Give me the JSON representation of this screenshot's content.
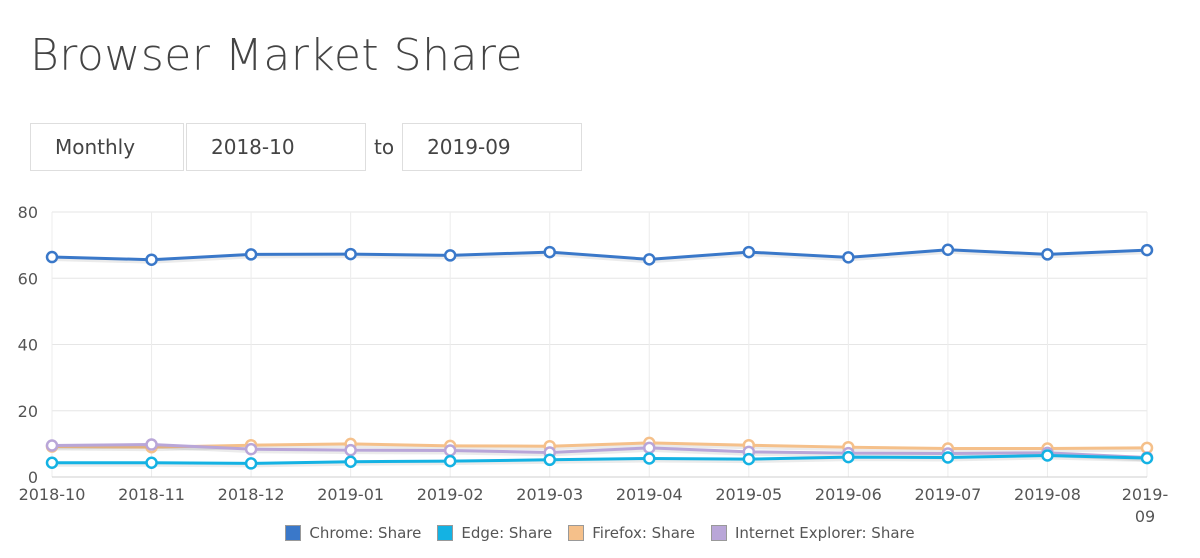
{
  "page": {
    "title": "Browser Market Share"
  },
  "controls": {
    "period": "Monthly",
    "from": "2018-10",
    "to_label": "to",
    "to": "2019-09"
  },
  "chart_data": {
    "type": "line",
    "x": [
      "2018-10",
      "2018-11",
      "2018-12",
      "2019-01",
      "2019-02",
      "2019-03",
      "2019-04",
      "2019-05",
      "2019-06",
      "2019-07",
      "2019-08",
      "2019-09"
    ],
    "x_tick_labels": [
      "2018-10",
      "2018-11",
      "2018-12",
      "2019-01",
      "2019-02",
      "2019-03",
      "2019-04",
      "2019-05",
      "2019-06",
      "2019-07",
      "2019-08",
      "2019-09"
    ],
    "ylim": [
      0,
      80
    ],
    "yticks": [
      0,
      20,
      40,
      60,
      80
    ],
    "grid": true,
    "legend_position": "bottom",
    "series": [
      {
        "name": "Chrome: Share",
        "color": "#3a78c9",
        "values": [
          66.4,
          65.6,
          67.2,
          67.3,
          66.9,
          67.9,
          65.7,
          67.9,
          66.3,
          68.6,
          67.2,
          68.5
        ]
      },
      {
        "name": "Edge: Share",
        "color": "#14b2e3",
        "values": [
          4.3,
          4.3,
          4.1,
          4.6,
          4.8,
          5.2,
          5.6,
          5.4,
          6.0,
          5.9,
          6.5,
          5.7
        ]
      },
      {
        "name": "Firefox: Share",
        "color": "#f5c08a",
        "values": [
          9.2,
          9.0,
          9.6,
          10.0,
          9.4,
          9.3,
          10.3,
          9.6,
          9.0,
          8.6,
          8.6,
          8.8
        ]
      },
      {
        "name": "Internet Explorer: Share",
        "color": "#b9a6d8",
        "values": [
          9.5,
          9.8,
          8.4,
          8.1,
          8.0,
          7.4,
          8.8,
          7.6,
          7.2,
          7.1,
          7.3,
          5.9
        ]
      }
    ]
  }
}
